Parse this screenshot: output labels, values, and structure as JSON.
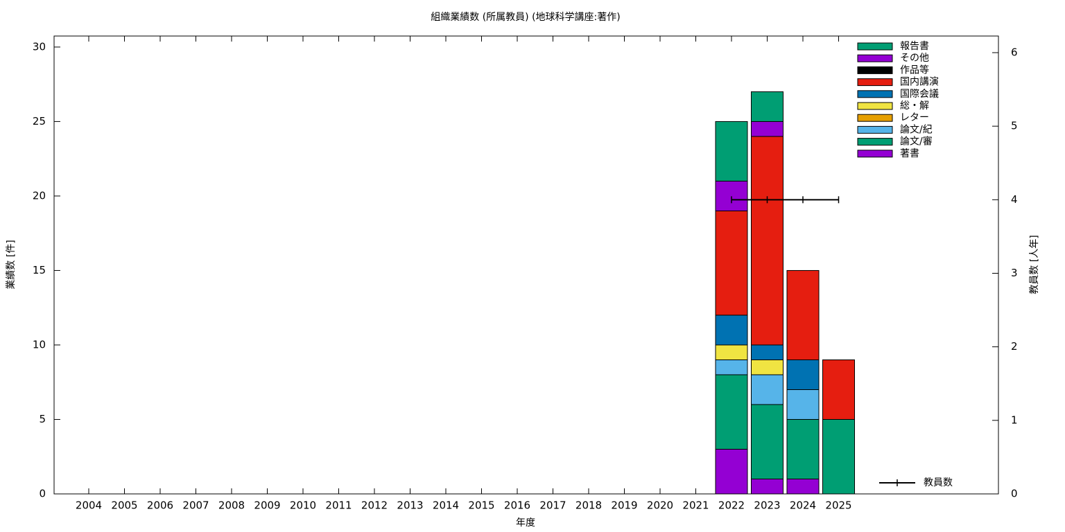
{
  "chart_data": {
    "type": "bar",
    "stacked": true,
    "title": "組織業績数 (所属教員) (地球科学講座:著作)",
    "xlabel": "年度",
    "ylabel": "業績数 [件]",
    "y2label": "教員数 [人年]",
    "categories": [
      "2004",
      "2005",
      "2006",
      "2007",
      "2008",
      "2009",
      "2010",
      "2011",
      "2012",
      "2013",
      "2014",
      "2015",
      "2016",
      "2017",
      "2018",
      "2019",
      "2020",
      "2021",
      "2022",
      "2023",
      "2024",
      "2025"
    ],
    "series": [
      {
        "name": "著書",
        "color": "#9400d3",
        "values": [
          0,
          0,
          0,
          0,
          0,
          0,
          0,
          0,
          0,
          0,
          0,
          0,
          0,
          0,
          0,
          0,
          0,
          0,
          3,
          1,
          1,
          0
        ]
      },
      {
        "name": "論文/審",
        "color": "#009e73",
        "values": [
          0,
          0,
          0,
          0,
          0,
          0,
          0,
          0,
          0,
          0,
          0,
          0,
          0,
          0,
          0,
          0,
          0,
          0,
          5,
          5,
          4,
          5
        ]
      },
      {
        "name": "論文/紀",
        "color": "#56b4e9",
        "values": [
          0,
          0,
          0,
          0,
          0,
          0,
          0,
          0,
          0,
          0,
          0,
          0,
          0,
          0,
          0,
          0,
          0,
          0,
          1,
          2,
          2,
          0
        ]
      },
      {
        "name": "レター",
        "color": "#e69f00",
        "values": [
          0,
          0,
          0,
          0,
          0,
          0,
          0,
          0,
          0,
          0,
          0,
          0,
          0,
          0,
          0,
          0,
          0,
          0,
          0,
          0,
          0,
          0
        ]
      },
      {
        "name": "総・解",
        "color": "#f0e442",
        "values": [
          0,
          0,
          0,
          0,
          0,
          0,
          0,
          0,
          0,
          0,
          0,
          0,
          0,
          0,
          0,
          0,
          0,
          0,
          1,
          1,
          0,
          0
        ]
      },
      {
        "name": "国際会議",
        "color": "#0072b2",
        "values": [
          0,
          0,
          0,
          0,
          0,
          0,
          0,
          0,
          0,
          0,
          0,
          0,
          0,
          0,
          0,
          0,
          0,
          0,
          2,
          1,
          2,
          0
        ]
      },
      {
        "name": "国内講演",
        "color": "#e51e10",
        "values": [
          0,
          0,
          0,
          0,
          0,
          0,
          0,
          0,
          0,
          0,
          0,
          0,
          0,
          0,
          0,
          0,
          0,
          0,
          7,
          14,
          6,
          4
        ]
      },
      {
        "name": "作品等",
        "color": "#000000",
        "values": [
          0,
          0,
          0,
          0,
          0,
          0,
          0,
          0,
          0,
          0,
          0,
          0,
          0,
          0,
          0,
          0,
          0,
          0,
          0,
          0,
          0,
          0
        ]
      },
      {
        "name": "その他",
        "color": "#9400d3",
        "values": [
          0,
          0,
          0,
          0,
          0,
          0,
          0,
          0,
          0,
          0,
          0,
          0,
          0,
          0,
          0,
          0,
          0,
          0,
          2,
          1,
          0,
          0
        ]
      },
      {
        "name": "報告書",
        "color": "#009e73",
        "values": [
          0,
          0,
          0,
          0,
          0,
          0,
          0,
          0,
          0,
          0,
          0,
          0,
          0,
          0,
          0,
          0,
          0,
          0,
          4,
          2,
          0,
          0
        ]
      },
      {
        "name": "教員数",
        "color": "#000000",
        "type": "line",
        "axis": "y2",
        "values": [
          null,
          null,
          null,
          null,
          null,
          null,
          null,
          null,
          null,
          null,
          null,
          null,
          null,
          null,
          null,
          null,
          null,
          null,
          4,
          4,
          4,
          4
        ]
      }
    ],
    "ylim": [
      0,
      30.74
    ],
    "yticks": [
      0,
      5,
      10,
      15,
      20,
      25,
      30
    ],
    "y2lim": [
      0,
      6.226
    ],
    "y2ticks": [
      0,
      1,
      2,
      3,
      4,
      5,
      6
    ]
  }
}
